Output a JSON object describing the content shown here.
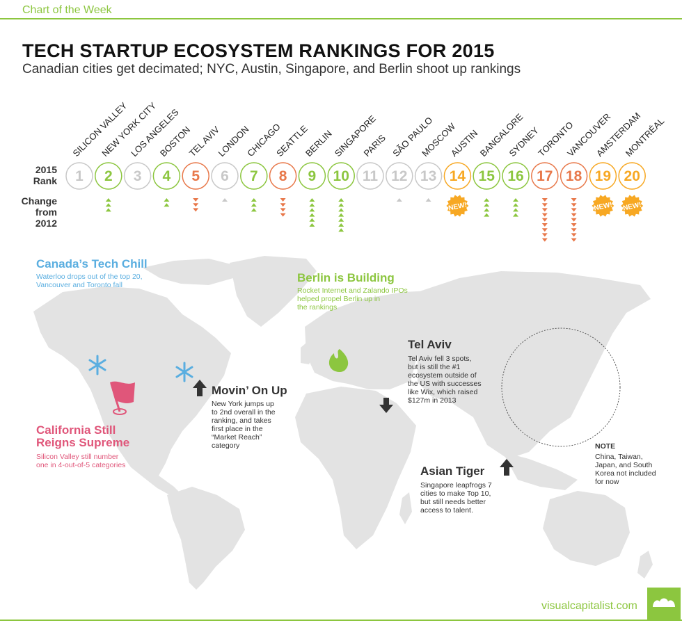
{
  "header": {
    "section_label": "Chart of the Week"
  },
  "title": "TECH STARTUP ECOSYSTEM RANKINGS FOR 2015",
  "subtitle": "Canadian cities get decimated; NYC, Austin, Singapore, and Berlin shoot up rankings",
  "labels": {
    "rank_line1": "2015",
    "rank_line2": "Rank",
    "change_line1": "Change",
    "change_line2": "from",
    "change_line3": "2012"
  },
  "colors": {
    "none": "#c8c8c8",
    "up": "#8cc63f",
    "down": "#e8784a",
    "new": "#f7a823",
    "map": "#e3e3e3",
    "canada": "#5aaee0",
    "california": "#e0567a"
  },
  "chart_data": {
    "type": "table",
    "title": "TECH STARTUP ECOSYSTEM RANKINGS FOR 2015",
    "columns": [
      "city",
      "rank_2015",
      "change_from_2012",
      "status"
    ],
    "new_badge_label": "NEW!",
    "rows": [
      {
        "city": "SILICON VALLEY",
        "rank": 1,
        "change": 0,
        "status": "none"
      },
      {
        "city": "NEW YORK CITY",
        "rank": 2,
        "change": 3,
        "status": "up"
      },
      {
        "city": "LOS ANGELES",
        "rank": 3,
        "change": 0,
        "status": "none"
      },
      {
        "city": "BOSTON",
        "rank": 4,
        "change": 2,
        "status": "up"
      },
      {
        "city": "TEL AVIV",
        "rank": 5,
        "change": -3,
        "status": "down"
      },
      {
        "city": "LONDON",
        "rank": 6,
        "change": 1,
        "status": "none"
      },
      {
        "city": "CHICAGO",
        "rank": 7,
        "change": 3,
        "status": "up"
      },
      {
        "city": "SEATTLE",
        "rank": 8,
        "change": -4,
        "status": "down"
      },
      {
        "city": "BERLIN",
        "rank": 9,
        "change": 6,
        "status": "up"
      },
      {
        "city": "SINGAPORE",
        "rank": 10,
        "change": 7,
        "status": "up"
      },
      {
        "city": "PARIS",
        "rank": 11,
        "change": 0,
        "status": "none"
      },
      {
        "city": "SÃO PAULO",
        "rank": 12,
        "change": 1,
        "status": "none"
      },
      {
        "city": "MOSCOW",
        "rank": 13,
        "change": 1,
        "status": "none"
      },
      {
        "city": "AUSTIN",
        "rank": 14,
        "change": null,
        "status": "new"
      },
      {
        "city": "BANGALORE",
        "rank": 15,
        "change": 4,
        "status": "up"
      },
      {
        "city": "SYDNEY",
        "rank": 16,
        "change": 4,
        "status": "up"
      },
      {
        "city": "TORONTO",
        "rank": 17,
        "change": -9,
        "status": "down"
      },
      {
        "city": "VANCOUVER",
        "rank": 18,
        "change": -9,
        "status": "down"
      },
      {
        "city": "AMSTERDAM",
        "rank": 19,
        "change": null,
        "status": "new"
      },
      {
        "city": "MONTRÉAL",
        "rank": 20,
        "change": null,
        "status": "new"
      }
    ]
  },
  "annotations": {
    "canada": {
      "title": "Canada’s Tech Chill",
      "line1": "Waterloo drops out of the top 20,",
      "line2": "Vancouver and Toronto fall"
    },
    "berlin": {
      "title": "Berlin is Building",
      "line1": "Rocket Internet and Zalando IPOs",
      "line2": "helped propel Berlin up in",
      "line3": "the rankings"
    },
    "telaviv": {
      "title": "Tel Aviv",
      "line1": "Tel Aviv fell 3 spots,",
      "line2": "but is still the #1",
      "line3": "ecosystem outside of",
      "line4": "the US with successes",
      "line5": "like Wix, which raised",
      "line6": "$127m in 2013"
    },
    "newyork": {
      "title": "Movin’ On Up",
      "line1": "New York jumps up",
      "line2": "to 2nd overall in the",
      "line3": "ranking, and takes",
      "line4": "first place in the",
      "line5": "“Market Reach”",
      "line6": "category"
    },
    "california": {
      "title1": "California Still",
      "title2": "Reigns Supreme",
      "line1": "Silicon Valley still number",
      "line2": "one in 4-out-of-5 categories"
    },
    "singapore": {
      "title": "Asian Tiger",
      "line1": "Singapore leapfrogs 7",
      "line2": "cities to make Top 10,",
      "line3": "but still needs better",
      "line4": "access to talent."
    },
    "note": {
      "title": "NOTE",
      "line1": "China, Taiwan,",
      "line2": "Japan, and South",
      "line3": "Korea not included",
      "line4": "for now"
    }
  },
  "footer": {
    "url": "visualcapitalist.com"
  }
}
